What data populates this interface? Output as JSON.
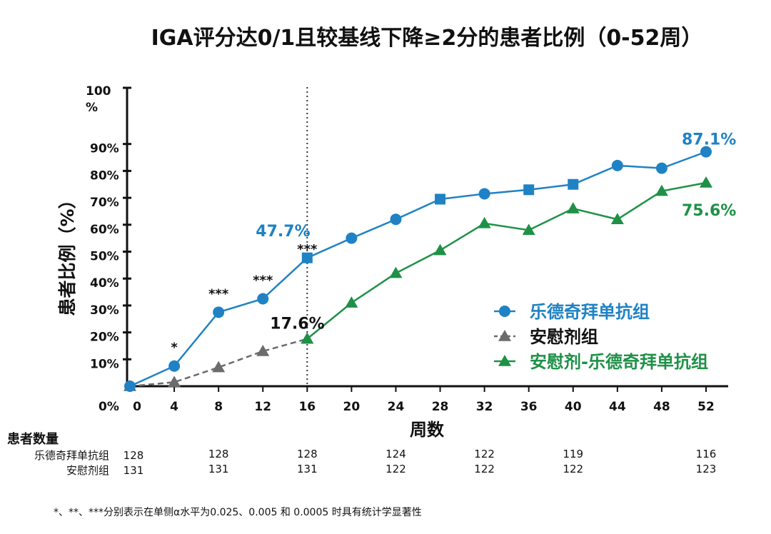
{
  "chart_data": {
    "type": "line",
    "title": "IGA评分达0/1且较基线下降≥2分的患者比例（0-52周）",
    "xlabel": "周数",
    "ylabel": "患者比例（%）",
    "x_ticks": [
      "0",
      "4",
      "8",
      "12",
      "16",
      "20",
      "24",
      "28",
      "32",
      "36",
      "40",
      "44",
      "48",
      "52"
    ],
    "y_ticks": [
      "0%",
      "10%",
      "20%",
      "30%",
      "40%",
      "50%",
      "60%",
      "70%",
      "80%",
      "90%",
      "100%"
    ],
    "y_tick_top_lines": [
      "100",
      "%"
    ],
    "ylim": [
      0,
      100
    ],
    "xlim": [
      0,
      52
    ],
    "series": [
      {
        "name": "乐德奇拜单抗组",
        "color": "#1f82c4",
        "dash": false,
        "points": [
          [
            0,
            0
          ],
          [
            4,
            7.5
          ],
          [
            8,
            27.5
          ],
          [
            12,
            32.5
          ],
          [
            16,
            47.7
          ],
          [
            20,
            55
          ],
          [
            24,
            62
          ],
          [
            28,
            69.5
          ],
          [
            32,
            71.5
          ],
          [
            36,
            73
          ],
          [
            40,
            75
          ],
          [
            44,
            82
          ],
          [
            48,
            81
          ],
          [
            52,
            87.1
          ]
        ],
        "markers": [
          "circle",
          "circle",
          "circle",
          "circle",
          "square",
          "circle",
          "circle",
          "square",
          "circle",
          "square",
          "square",
          "circle",
          "circle",
          "circle"
        ]
      },
      {
        "name": "安慰剂组",
        "color": "#6b6b6b",
        "dash": true,
        "points": [
          [
            0,
            0
          ],
          [
            4,
            1.5
          ],
          [
            8,
            7
          ],
          [
            12,
            13
          ],
          [
            16,
            17.6
          ]
        ],
        "markers": [
          "triangle",
          "triangle",
          "triangle",
          "triangle",
          "triangle"
        ]
      },
      {
        "name": "安慰剂-乐德奇拜单抗组",
        "color": "#1e9147",
        "dash": false,
        "points": [
          [
            16,
            17.6
          ],
          [
            20,
            31
          ],
          [
            24,
            42
          ],
          [
            28,
            50.5
          ],
          [
            32,
            60.5
          ],
          [
            36,
            58
          ],
          [
            40,
            66
          ],
          [
            44,
            62
          ],
          [
            48,
            72.5
          ],
          [
            52,
            75.6
          ]
        ],
        "markers": [
          "triangle",
          "triangle",
          "triangle",
          "triangle",
          "triangle",
          "triangle",
          "triangle",
          "triangle",
          "triangle",
          "triangle"
        ]
      }
    ],
    "reference_line_x": 16,
    "annotations": [
      {
        "text": "87.1%",
        "x": 52,
        "y": 87.1,
        "color": "#1f82c4"
      },
      {
        "text": "75.6%",
        "x": 52,
        "y": 75.6,
        "color": "#1e9147"
      },
      {
        "text": "47.7%",
        "x": 16,
        "y": 47.7,
        "color": "#1f82c4"
      },
      {
        "text": "17.6%",
        "x": 16,
        "y": 17.6,
        "color": "#111111"
      }
    ],
    "significance": [
      {
        "text": "*",
        "x": 4
      },
      {
        "text": "***",
        "x": 8
      },
      {
        "text": "***",
        "x": 12
      },
      {
        "text": "***",
        "x": 16
      }
    ]
  },
  "patients": {
    "title": "患者数量",
    "rows": [
      {
        "label": "乐德奇拜单抗组",
        "values": [
          [
            "0",
            "128"
          ],
          [
            "8",
            "128"
          ],
          [
            "16",
            "128"
          ],
          [
            "24",
            "124"
          ],
          [
            "32",
            "122"
          ],
          [
            "40",
            "119"
          ],
          [
            "52",
            "116"
          ]
        ]
      },
      {
        "label": "安慰剂组",
        "values": [
          [
            "0",
            "131"
          ],
          [
            "8",
            "131"
          ],
          [
            "16",
            "131"
          ],
          [
            "24",
            "122"
          ],
          [
            "32",
            "122"
          ],
          [
            "40",
            "122"
          ],
          [
            "52",
            "123"
          ]
        ]
      }
    ]
  },
  "footnote": "*、**、***分别表示在单侧α水平为0.025、0.005 和 0.0005 时具有统计学显著性"
}
